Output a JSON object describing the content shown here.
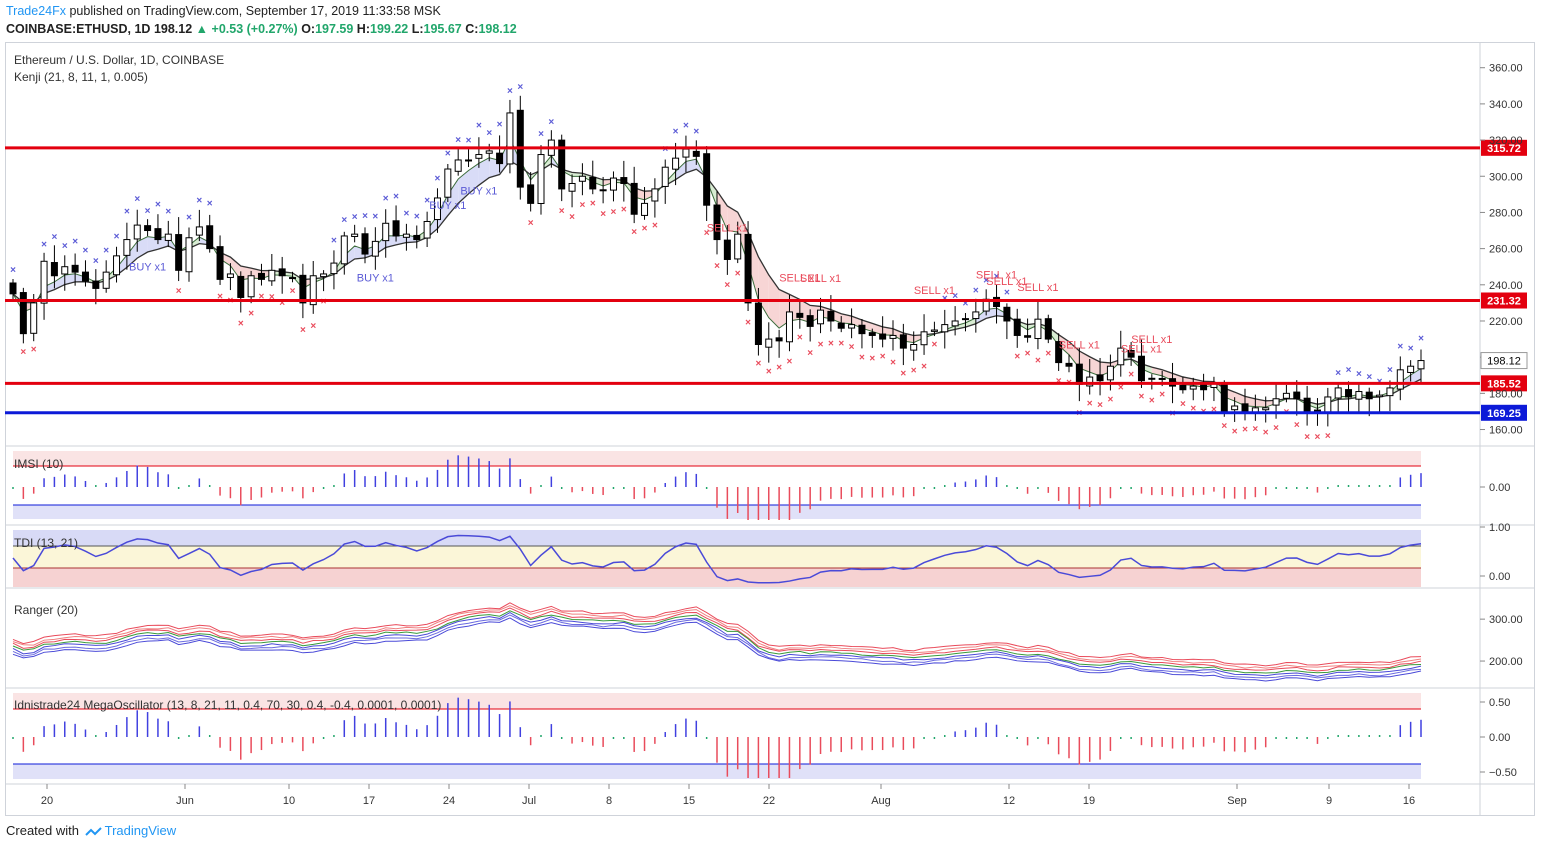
{
  "header": {
    "author": "Trade24Fx",
    "published": "published on TradingView.com, September 17, 2019 11:33:58 MSK",
    "symbol": "COINBASE:ETHUSD, 1D",
    "last": "198.12",
    "change": "+0.53 (+0.27%)",
    "o_label": "O:",
    "o_value": "197.59",
    "h_label": "H:",
    "h_value": "199.22",
    "l_label": "L:",
    "l_value": "195.67",
    "c_label": "C:",
    "c_value": "198.12"
  },
  "footer": {
    "created_with": "Created with",
    "brand": "TradingView"
  },
  "colors": {
    "bull": "#ffffff",
    "bear": "#000000",
    "resistance": "#e3000f",
    "support": "#0c1ad8",
    "buy_marker": "#5b5bd6",
    "sell_marker": "#e94b5b",
    "hist_pos": "#4040e0",
    "hist_neg": "#e94b5b",
    "hist_flat": "#21a66b",
    "band_red": "#f6d2d2",
    "band_blue": "#d8daf6"
  },
  "chart_data": [
    {
      "type": "candlestick",
      "title": "Ethereum / U.S. Dollar, 1D, COINBASE",
      "indicator": "Kenji (21, 8, 11, 1, 0.005)",
      "x_tick_labels": [
        "20",
        "Jun",
        "10",
        "17",
        "24",
        "Jul",
        "8",
        "15",
        "22",
        "Aug",
        "12",
        "19",
        "Sep",
        "9",
        "16"
      ],
      "y_ticks": [
        160,
        180,
        200,
        220,
        240,
        260,
        280,
        300,
        320,
        340,
        360
      ],
      "ylim": [
        152,
        372
      ],
      "price_tag": "198.12",
      "levels": [
        {
          "value": 315.72,
          "label": "315.72",
          "role": "resistance"
        },
        {
          "value": 231.32,
          "label": "231.32",
          "role": "resistance"
        },
        {
          "value": 185.52,
          "label": "185.52",
          "role": "resistance"
        },
        {
          "value": 169.25,
          "label": "169.25",
          "role": "support"
        }
      ],
      "signal_labels": [
        {
          "text": "BUY x1",
          "date": "2019-05-29"
        },
        {
          "text": "BUY x1",
          "date": "2019-06-20"
        },
        {
          "text": "BUY x1",
          "date": "2019-06-27"
        },
        {
          "text": "BUY x1",
          "date": "2019-06-30"
        },
        {
          "text": "SELL x1",
          "date": "2019-07-24"
        },
        {
          "text": "SELL x1",
          "date": "2019-07-31"
        },
        {
          "text": "SELL x1",
          "date": "2019-08-02"
        },
        {
          "text": "SELL x1",
          "date": "2019-08-13"
        },
        {
          "text": "SELL x1",
          "date": "2019-08-19"
        },
        {
          "text": "SELL x1",
          "date": "2019-08-20"
        },
        {
          "text": "SELL x1",
          "date": "2019-08-23"
        },
        {
          "text": "SELL x1",
          "date": "2019-08-27"
        },
        {
          "text": "SELL x1",
          "date": "2019-09-02"
        },
        {
          "text": "SELL x1",
          "date": "2019-09-03"
        }
      ],
      "closes": [
        235,
        213,
        230,
        253,
        245,
        250,
        247,
        242,
        238,
        247,
        256,
        265,
        273,
        270,
        265,
        268,
        248,
        266,
        272,
        260,
        243,
        246,
        233,
        245,
        243,
        248,
        245,
        244,
        230,
        245,
        246,
        252,
        267,
        268,
        257,
        264,
        274,
        267,
        268,
        265,
        275,
        288,
        304,
        309,
        309,
        312,
        314,
        307,
        335,
        294,
        285,
        312,
        320,
        293,
        296,
        300,
        293,
        292,
        299,
        296,
        279,
        285,
        293,
        305,
        310,
        315,
        311,
        284,
        265,
        254,
        268,
        230,
        207,
        210,
        209,
        225,
        222,
        217,
        226,
        220,
        216,
        218,
        213,
        212,
        210,
        212,
        205,
        207,
        214,
        215,
        218,
        220,
        221,
        225,
        232,
        228,
        220,
        212,
        211,
        221,
        210,
        197,
        195,
        185,
        189,
        187,
        195,
        205,
        200,
        187,
        188,
        188,
        184,
        182,
        184,
        182,
        186,
        170,
        173,
        170,
        172,
        172,
        177,
        180,
        177,
        170,
        169,
        178,
        183,
        178,
        181,
        177,
        179,
        183,
        193,
        195,
        198.12
      ]
    },
    {
      "type": "bar",
      "title": "IMSI (10)",
      "y_ticks": [
        0.0
      ],
      "tick_labels": [
        "0.00"
      ]
    },
    {
      "type": "line",
      "title": "TDI (13, 21)",
      "y_ticks": [
        0.0,
        1.0
      ],
      "tick_labels": [
        "0.00",
        "1.00"
      ]
    },
    {
      "type": "line",
      "title": "Ranger (20)",
      "y_ticks": [
        200,
        300
      ],
      "tick_labels": [
        "200.00",
        "300.00"
      ]
    },
    {
      "type": "bar",
      "title": "Idnistrade24 MegaOscillator (13, 8, 21, 11, 0.4, 70, 30, 0.4, -0.4, 0.0001, 0.0001)",
      "y_ticks": [
        -0.5,
        0.0,
        0.5
      ],
      "tick_labels": [
        "−0.50",
        "0.00",
        "0.50"
      ]
    }
  ]
}
